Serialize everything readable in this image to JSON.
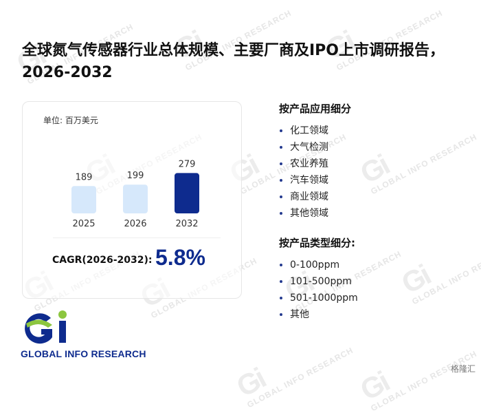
{
  "title": "全球氮气传感器行业总体规模、主要厂商及IPO上市调研报告，2026-2032",
  "unit_label": "单位: 百万美元",
  "chart_data": {
    "type": "bar",
    "categories": [
      "2025",
      "2026",
      "2032"
    ],
    "values": [
      189,
      199,
      279
    ],
    "ylim": [
      0,
      300
    ],
    "bar_colors": [
      "#d6e8fb",
      "#d6e8fb",
      "#0e2b8e"
    ],
    "grid": false
  },
  "cagr": {
    "label": "CAGR(2026-2032):",
    "value": "5.8%"
  },
  "segments": [
    {
      "heading": "按产品应用细分",
      "items": [
        "化工领域",
        "大气检测",
        "农业养殖",
        "汽车领域",
        "商业领域",
        "其他领域"
      ]
    },
    {
      "heading": "按产品类型细分:",
      "items": [
        "0-100ppm",
        "101-500ppm",
        "501-1000ppm",
        "其他"
      ]
    }
  ],
  "logo": {
    "text": "GLOBAL INFO RESEARCH"
  },
  "watermark": {
    "text": "GLOBAL INFO RESEARCH"
  },
  "badge": "格隆汇",
  "colors": {
    "accent": "#0e2b8e",
    "bar_light": "#d6e8fb",
    "logo_green": "#8cc63f",
    "logo_blue": "#0e2b8e"
  }
}
